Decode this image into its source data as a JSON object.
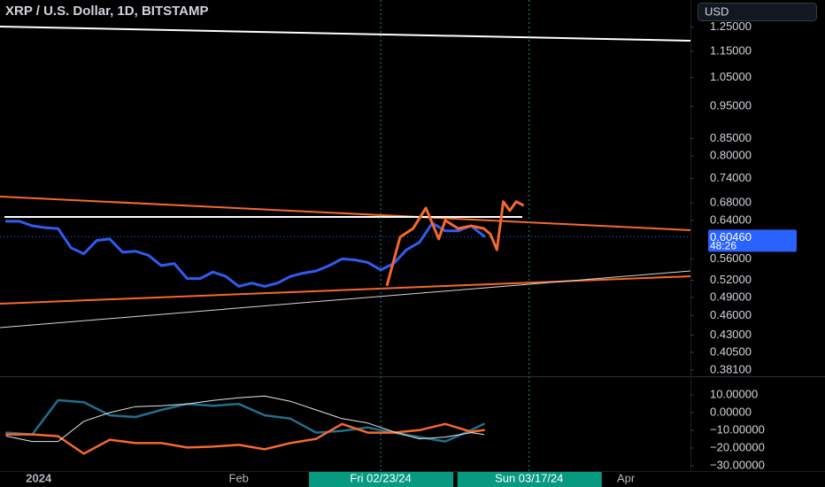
{
  "header": {
    "title": "XRP / U.S. Dollar, 1D, BITSTAMP",
    "currency": "USD"
  },
  "chart_data": [
    {
      "type": "line",
      "log_scale": true,
      "xlim": [
        "2023-12-26",
        "2024-04-11"
      ],
      "ylim": [
        0.375,
        1.3
      ],
      "yticks": [
        {
          "value": 1.25,
          "label": "1.25000"
        },
        {
          "value": 1.15,
          "label": "1.15000"
        },
        {
          "value": 1.05,
          "label": "1.05000"
        },
        {
          "value": 0.95,
          "label": "0.95000"
        },
        {
          "value": 0.85,
          "label": "0.85000"
        },
        {
          "value": 0.8,
          "label": "0.80000"
        },
        {
          "value": 0.74,
          "label": "0.74000"
        },
        {
          "value": 0.68,
          "label": "0.68000"
        },
        {
          "value": 0.64,
          "label": "0.64000"
        },
        {
          "value": 0.56,
          "label": "0.56000"
        },
        {
          "value": 0.52,
          "label": "0.52000"
        },
        {
          "value": 0.49,
          "label": "0.49000"
        },
        {
          "value": 0.46,
          "label": "0.46000"
        },
        {
          "value": 0.43,
          "label": "0.43000"
        },
        {
          "value": 0.405,
          "label": "0.40500"
        },
        {
          "value": 0.381,
          "label": "0.38100"
        }
      ],
      "last_price": {
        "value": 0.6046,
        "label": "0.60460"
      },
      "countdown": "48:26",
      "series": [
        {
          "color": "#2f5cf0",
          "x": [
            "2023-12-27",
            "2023-12-29",
            "2023-12-31",
            "2024-01-02",
            "2024-01-04",
            "2024-01-06",
            "2024-01-08",
            "2024-01-10",
            "2024-01-12",
            "2024-01-14",
            "2024-01-16",
            "2024-01-18",
            "2024-01-20",
            "2024-01-22",
            "2024-01-24",
            "2024-01-26",
            "2024-01-28",
            "2024-01-30",
            "2024-02-01",
            "2024-02-03",
            "2024-02-05",
            "2024-02-07",
            "2024-02-09",
            "2024-02-11",
            "2024-02-13",
            "2024-02-15",
            "2024-02-17",
            "2024-02-19",
            "2024-02-21",
            "2024-02-23",
            "2024-02-25",
            "2024-02-27",
            "2024-02-29",
            "2024-03-02",
            "2024-03-04",
            "2024-03-06",
            "2024-03-08",
            "2024-03-10"
          ],
          "values": [
            0.638,
            0.638,
            0.628,
            0.624,
            0.622,
            0.582,
            0.57,
            0.597,
            0.6,
            0.573,
            0.575,
            0.567,
            0.547,
            0.551,
            0.523,
            0.523,
            0.535,
            0.527,
            0.509,
            0.515,
            0.509,
            0.515,
            0.527,
            0.533,
            0.537,
            0.547,
            0.56,
            0.558,
            0.553,
            0.539,
            0.551,
            0.578,
            0.593,
            0.634,
            0.617,
            0.617,
            0.628,
            0.606
          ]
        },
        {
          "color": "#f7682c",
          "x": [
            "2024-02-24",
            "2024-02-26",
            "2024-02-28",
            "2024-03-01",
            "2024-03-03",
            "2024-03-04",
            "2024-03-06",
            "2024-03-08",
            "2024-03-10",
            "2024-03-11",
            "2024-03-12",
            "2024-03-13",
            "2024-03-14",
            "2024-03-15",
            "2024-03-16"
          ],
          "values": [
            0.512,
            0.604,
            0.622,
            0.668,
            0.6,
            0.64,
            0.622,
            0.628,
            0.622,
            0.61,
            0.578,
            0.683,
            0.662,
            0.683,
            0.675
          ]
        }
      ]
    },
    {
      "type": "line",
      "xlim": [
        "2023-12-26",
        "2024-04-11"
      ],
      "ylim": [
        -33,
        19
      ],
      "yticks": [
        {
          "value": 10,
          "label": "10.00000"
        },
        {
          "value": 0,
          "label": "0.00000"
        },
        {
          "value": -10,
          "label": "−10.00000"
        },
        {
          "value": -20,
          "label": "−20.00000"
        },
        {
          "value": -30,
          "label": "−30.00000"
        }
      ],
      "xticks": [
        {
          "value": "2024-01-01",
          "label": "2024"
        },
        {
          "value": "2024-02-01",
          "label": "Feb"
        },
        {
          "value": "2024-02-23",
          "label": "Fri 02/23/24",
          "highlight": true
        },
        {
          "value": "2024-03-17",
          "label": "Sun 03/17/24",
          "highlight": true
        },
        {
          "value": "2024-04-01",
          "label": "Apr"
        }
      ],
      "x": [
        "2023-12-27",
        "2023-12-31",
        "2024-01-04",
        "2024-01-08",
        "2024-01-12",
        "2024-01-16",
        "2024-01-20",
        "2024-01-24",
        "2024-01-28",
        "2024-02-01",
        "2024-02-05",
        "2024-02-09",
        "2024-02-13",
        "2024-02-17",
        "2024-02-21",
        "2024-02-25",
        "2024-02-29",
        "2024-03-04",
        "2024-03-08",
        "2024-03-10"
      ],
      "series": [
        {
          "color": "#1f6f8f",
          "values": [
            -11.3,
            -12.3,
            7.0,
            5.9,
            -1.5,
            -2.5,
            1.5,
            4.9,
            3.9,
            4.9,
            -1.5,
            -3.4,
            -11.3,
            -10.3,
            -8.4,
            -11.3,
            -13.8,
            -16.3,
            -9.9,
            -6.4
          ]
        },
        {
          "color": "#f7682c",
          "values": [
            -12.3,
            -12.3,
            -13.3,
            -23.2,
            -15.3,
            -17.2,
            -17.2,
            -19.7,
            -19.2,
            -18.2,
            -20.7,
            -17.2,
            -14.8,
            -6.4,
            -11.3,
            -11.3,
            -9.9,
            -6.4,
            -10.8,
            -9.9
          ]
        },
        {
          "color": "#e6e6e6",
          "values": [
            -13.3,
            -16.3,
            -16.3,
            -4.9,
            0,
            3.4,
            3.9,
            4.9,
            6.9,
            8.4,
            9.4,
            6.4,
            1.5,
            -3.4,
            -5.9,
            -10.8,
            -14.8,
            -13.8,
            -11.3,
            -12.3
          ]
        }
      ]
    }
  ]
}
